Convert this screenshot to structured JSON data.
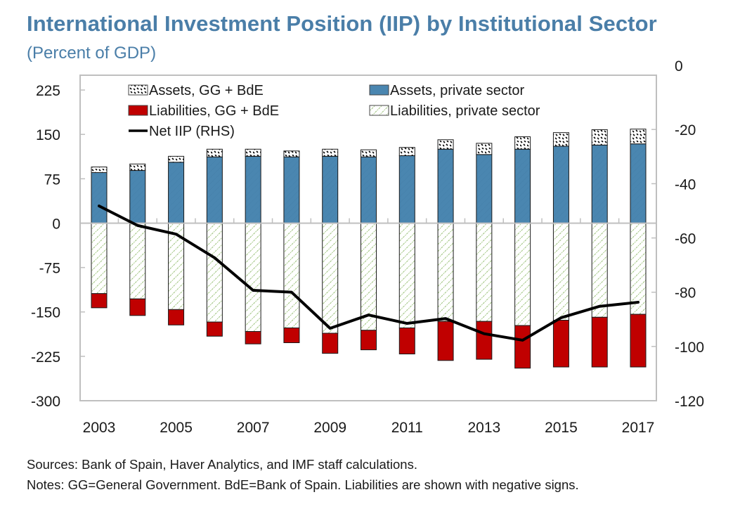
{
  "header": {
    "title": "International Investment Position (IIP) by Institutional Sector",
    "subtitle": "(Percent of GDP)"
  },
  "footer": {
    "sources": "Sources: Bank of Spain, Haver Analytics, and IMF staff calculations.",
    "notes": "Notes: GG=General Government. BdE=Bank of Spain. Liabilities are shown with negative signs."
  },
  "colors": {
    "assets_private": "#4a86b0",
    "liabilities_gg": "#c00000",
    "liabilities_private_hatch": "#9bc27a",
    "net_iip": "#000000",
    "title": "#4a7ea8",
    "axis": "#bfbfbf"
  },
  "chart_data": {
    "type": "bar",
    "title": "International Investment Position (IIP) by Institutional Sector",
    "subtitle": "(Percent of GDP)",
    "xlabel": "",
    "ylabel": "",
    "categories": [
      "2003",
      "2004",
      "2005",
      "2006",
      "2007",
      "2008",
      "2009",
      "2010",
      "2011",
      "2012",
      "2013",
      "2014",
      "2015",
      "2016",
      "2017"
    ],
    "x_tick_labels": [
      "2003",
      "2005",
      "2007",
      "2009",
      "2011",
      "2013",
      "2015",
      "2017"
    ],
    "left_axis": {
      "ylim": [
        -300,
        250
      ],
      "ticks": [
        225,
        150,
        75,
        0,
        -75,
        -150,
        -225,
        -300
      ]
    },
    "right_axis": {
      "ylim": [
        -120,
        0
      ],
      "ticks": [
        0,
        -20,
        -40,
        -60,
        -80,
        -100,
        -120
      ]
    },
    "grid": false,
    "legend_position": "top-inside",
    "series": [
      {
        "name": "Assets, GG + BdE",
        "axis": "left",
        "kind": "stacked-bar-hatched",
        "values": [
          9.5,
          11,
          10,
          13,
          12,
          10,
          12,
          12,
          14,
          16,
          19,
          21,
          23,
          26,
          25
        ]
      },
      {
        "name": "Assets, private sector",
        "axis": "left",
        "kind": "stacked-bar",
        "values": [
          85.5,
          89,
          103,
          112,
          113,
          112,
          113,
          112,
          114,
          125,
          116,
          125,
          130,
          132,
          134
        ]
      },
      {
        "name": "Liabilities, GG + BdE",
        "axis": "left",
        "kind": "stacked-bar",
        "values": [
          -24,
          -28,
          -26,
          -24,
          -21,
          -25,
          -34,
          -33,
          -44,
          -66,
          -64,
          -72,
          -79,
          -84,
          -89
        ]
      },
      {
        "name": "Liabilities, private sector",
        "axis": "left",
        "kind": "stacked-bar-hatched",
        "values": [
          -119,
          -128,
          -146,
          -167,
          -183,
          -177,
          -186,
          -181,
          -177,
          -166,
          -166,
          -173,
          -164,
          -159,
          -154
        ]
      },
      {
        "name": "Net IIP (RHS)",
        "axis": "right",
        "kind": "line",
        "values": [
          -48.2,
          -55.4,
          -58.6,
          -67.3,
          -79.3,
          -80.0,
          -93.3,
          -88.4,
          -91.5,
          -89.7,
          -95.3,
          -97.7,
          -89.4,
          -85.2,
          -83.7
        ]
      }
    ],
    "legend": [
      {
        "label": "Assets, GG + BdE",
        "swatch": "hatch-black"
      },
      {
        "label": "Assets, private sector",
        "swatch": "solid-blue"
      },
      {
        "label": "Liabilities, GG + BdE",
        "swatch": "solid-red"
      },
      {
        "label": "Liabilities, private sector",
        "swatch": "hatch-green"
      },
      {
        "label": "Net IIP (RHS)",
        "swatch": "line-black"
      }
    ]
  }
}
